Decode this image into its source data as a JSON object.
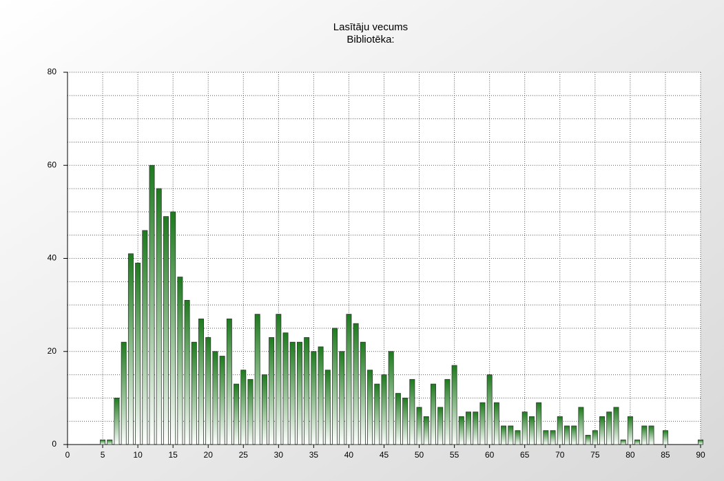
{
  "chart_data": {
    "type": "bar",
    "title": "Lasītāju vecums",
    "subtitle": "Bibliotēka:",
    "x": [
      5,
      6,
      7,
      8,
      9,
      10,
      11,
      12,
      13,
      14,
      15,
      16,
      17,
      18,
      19,
      20,
      21,
      22,
      23,
      24,
      25,
      26,
      27,
      28,
      29,
      30,
      31,
      32,
      33,
      34,
      35,
      36,
      37,
      38,
      39,
      40,
      41,
      42,
      43,
      44,
      45,
      46,
      47,
      48,
      49,
      50,
      51,
      52,
      53,
      54,
      55,
      56,
      57,
      58,
      59,
      60,
      61,
      62,
      63,
      64,
      65,
      66,
      67,
      68,
      69,
      70,
      71,
      72,
      73,
      74,
      75,
      76,
      77,
      78,
      79,
      80,
      81,
      82,
      83,
      85,
      90
    ],
    "values": [
      1,
      1,
      10,
      22,
      41,
      39,
      46,
      60,
      55,
      49,
      50,
      36,
      31,
      22,
      27,
      23,
      20,
      19,
      27,
      13,
      16,
      14,
      28,
      15,
      23,
      28,
      24,
      22,
      22,
      23,
      20,
      21,
      16,
      25,
      20,
      28,
      26,
      22,
      16,
      13,
      15,
      20,
      11,
      10,
      14,
      8,
      6,
      13,
      8,
      14,
      17,
      6,
      7,
      7,
      9,
      15,
      9,
      4,
      4,
      3,
      7,
      6,
      9,
      3,
      3,
      6,
      4,
      4,
      8,
      2,
      3,
      6,
      7,
      8,
      1,
      6,
      1,
      4,
      4,
      3,
      1
    ],
    "color": "#1e7a1e",
    "xlim": [
      0,
      90
    ],
    "xticks": [
      0,
      5,
      10,
      15,
      20,
      25,
      30,
      35,
      40,
      45,
      50,
      55,
      60,
      65,
      70,
      75,
      80,
      85,
      90
    ],
    "ylim": [
      0,
      80
    ],
    "yticks": [
      0,
      20,
      40,
      60,
      80
    ],
    "ygrid": [
      5,
      10,
      15,
      20,
      25,
      30,
      35,
      40,
      45,
      50,
      55,
      60,
      65,
      70,
      75,
      80
    ],
    "grid": true
  }
}
